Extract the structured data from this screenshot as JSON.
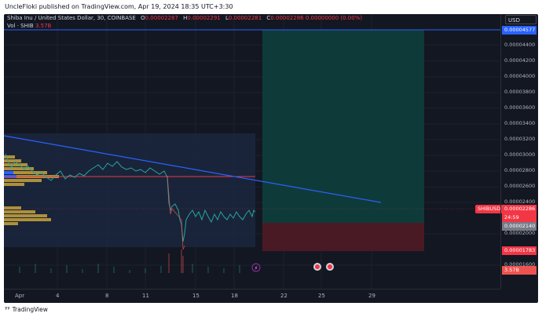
{
  "header": {
    "publish_line": "UncleFloki published on TradingView.com, Apr 19, 2024 18:35 UTC+3:30"
  },
  "legend": {
    "symbol_line": "Shiba Inu / United States Dollar, 30, COINBASE",
    "open_label": "O",
    "open_value": "0.00002287",
    "high_label": "H",
    "high_value": "0.00002291",
    "low_label": "L",
    "low_value": "0.00002281",
    "close_label": "C",
    "close_value": "0.00002286 0.00000000 (0.00%)",
    "vol_label": "Vol · SHIB",
    "vol_value": "3.57B"
  },
  "price_axis": {
    "currency": "USD",
    "ticks": [
      "0.00004400",
      "0.00004200",
      "0.00004000",
      "0.00003800",
      "0.00003600",
      "0.00003400",
      "0.00003200",
      "0.00003000",
      "0.00002800",
      "0.00002600",
      "0.00002400",
      "0.00002000",
      "0.00001600"
    ],
    "tags": {
      "alert_line": "0.00004577",
      "symbol_name": "SHIBUSD",
      "last_price": "0.00002286",
      "countdown": "24:59",
      "entry": "0.00002140",
      "stop": "0.00001783",
      "volume": "3.57B"
    }
  },
  "time_axis": {
    "labels": [
      "Apr",
      "4",
      "8",
      "11",
      "15",
      "18",
      "22",
      "25",
      "29"
    ]
  },
  "footer": {
    "brand": "TradingView"
  },
  "colors": {
    "background": "#131722",
    "candle_up": "#26a69a",
    "candle_down": "#ef5350",
    "trendline": "#2962ff",
    "target_zone": "#0f3a3a",
    "stop_zone": "#4a1a24",
    "volume_profile": "#e0b43a"
  }
}
